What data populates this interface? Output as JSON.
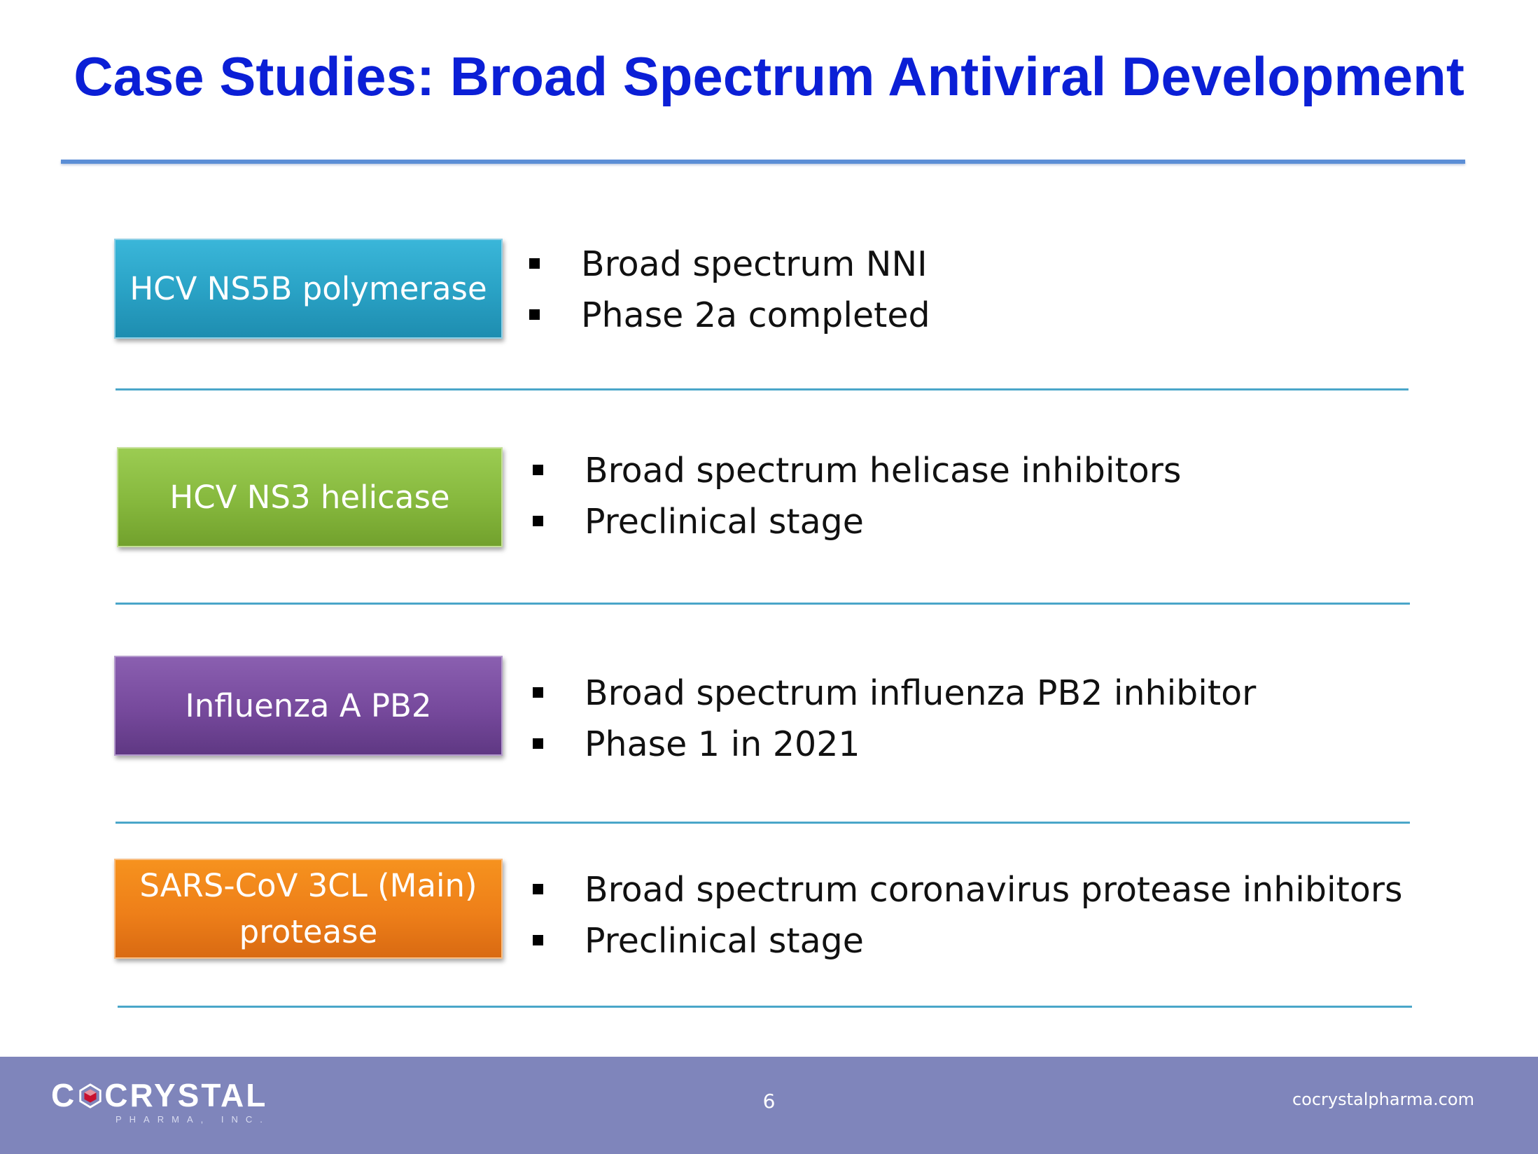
{
  "slide": {
    "title": "Case Studies: Broad Spectrum Antiviral Development",
    "rows": [
      {
        "label": "HCV NS5B polymerase",
        "color": "#2aa3c6",
        "bullets": [
          "Broad spectrum NNI",
          "Phase 2a completed"
        ]
      },
      {
        "label": "HCV NS3 helicase",
        "color": "#86b83d",
        "bullets": [
          "Broad spectrum helicase inhibitors",
          "Preclinical stage"
        ]
      },
      {
        "label": "Influenza A PB2",
        "color": "#76499c",
        "bullets": [
          "Broad spectrum influenza PB2 inhibitor",
          "Phase 1 in 2021"
        ]
      },
      {
        "label_line1": "SARS-CoV 3CL (Main)",
        "label_line2": "protease",
        "color": "#ee7f19",
        "bullets": [
          "Broad spectrum coronavirus protease inhibitors",
          "Preclinical stage"
        ]
      }
    ]
  },
  "footer": {
    "logo_left": "C",
    "logo_right": "CRYSTAL",
    "logo_sub": "PHARMA, INC.",
    "logo_icon": "crystal-gem-icon",
    "page_number": "6",
    "website": "cocrystalpharma.com",
    "background": "#7f85bb"
  },
  "colors": {
    "title": "#0b1fd6",
    "title_rule": "#5b8ed6",
    "divider": "#4aa6c9"
  }
}
